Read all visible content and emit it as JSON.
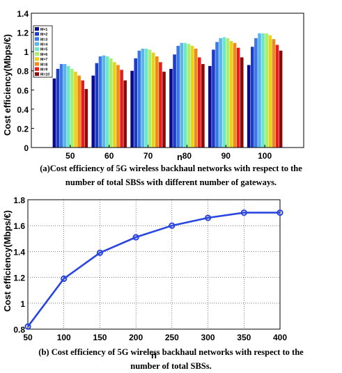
{
  "chart_data": [
    {
      "type": "bar",
      "xlabel": "n",
      "ylabel": "Cost efficiency(Mbps/€)",
      "ylim": [
        0,
        1.4
      ],
      "yticks": [
        "0",
        "0.2",
        "0.4",
        "0.6",
        "0.8",
        "1",
        "1.2",
        "1.4"
      ],
      "categories": [
        "50",
        "60",
        "70",
        "80",
        "90",
        "100"
      ],
      "legend_position": "top-left",
      "grid": false,
      "caption_lines": [
        "(a)Cost efficiency of 5G wireless backhaul networks with respect to the",
        "number of  total SBSs with different number of gateways."
      ],
      "series": [
        {
          "name": "M=1",
          "color": "#0a0a8c",
          "values": [
            0.72,
            0.75,
            0.8,
            0.82,
            0.85,
            0.86
          ]
        },
        {
          "name": "M=2",
          "color": "#1c3cc8",
          "values": [
            0.82,
            0.88,
            0.93,
            0.97,
            1.02,
            1.05
          ]
        },
        {
          "name": "M=3",
          "color": "#3a78e6",
          "values": [
            0.87,
            0.95,
            1.01,
            1.06,
            1.1,
            1.14
          ]
        },
        {
          "name": "M=4",
          "color": "#5ab4f0",
          "values": [
            0.87,
            0.96,
            1.03,
            1.09,
            1.14,
            1.19
          ]
        },
        {
          "name": "M=5",
          "color": "#6ee6c8",
          "values": [
            0.85,
            0.95,
            1.03,
            1.09,
            1.15,
            1.19
          ]
        },
        {
          "name": "M=6",
          "color": "#a6f06e",
          "values": [
            0.82,
            0.93,
            1.02,
            1.08,
            1.14,
            1.19
          ]
        },
        {
          "name": "M=7",
          "color": "#e8d21e",
          "values": [
            0.79,
            0.89,
            0.99,
            1.06,
            1.11,
            1.17
          ]
        },
        {
          "name": "M=8",
          "color": "#f08a14",
          "values": [
            0.75,
            0.86,
            0.95,
            1.03,
            1.09,
            1.13
          ]
        },
        {
          "name": "M=9",
          "color": "#e81e1e",
          "values": [
            0.7,
            0.81,
            0.89,
            0.94,
            1.04,
            1.07
          ]
        },
        {
          "name": "M=10",
          "color": "#8c0a0a",
          "values": [
            0.61,
            0.7,
            0.79,
            0.87,
            0.94,
            1.01
          ]
        }
      ]
    },
    {
      "type": "line",
      "xlabel": "n",
      "ylabel": "Cost efficiency(Mbps/€)",
      "xlim": [
        50,
        400
      ],
      "ylim": [
        0.8,
        1.8
      ],
      "xticks": [
        "50",
        "100",
        "150",
        "200",
        "250",
        "300",
        "350",
        "400"
      ],
      "yticks": [
        "0.8",
        "1",
        "1.2",
        "1.4",
        "1.6",
        "1.8"
      ],
      "grid": true,
      "color": "#2a46e0",
      "x": [
        50,
        100,
        150,
        200,
        250,
        300,
        350,
        400
      ],
      "y": [
        0.82,
        1.19,
        1.39,
        1.51,
        1.6,
        1.66,
        1.7,
        1.7
      ],
      "caption_lines": [
        "(b) Cost efficiency of 5G wireless backhaul networks with respect to the",
        "number of total SBSs."
      ]
    }
  ]
}
